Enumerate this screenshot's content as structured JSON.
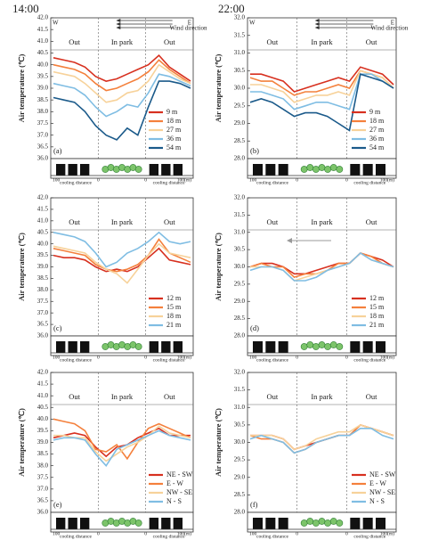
{
  "headers": [
    "14:00",
    "22:00"
  ],
  "chart_data": [
    {
      "type": "line",
      "panel": "(a)",
      "y_label": "Air temperature (℃)",
      "sections": [
        "Out",
        "In park",
        "Out"
      ],
      "west": "W",
      "east": "E",
      "wind_label": "Wind direction",
      "strip_labels": [
        "100",
        "cooling distance",
        "0",
        "0",
        "cooling distance",
        "100(m)"
      ],
      "ylim": [
        36,
        42
      ],
      "yticks": [
        {
          "value": 36,
          "label": "36.0"
        },
        {
          "value": 36.5,
          "label": "36.5"
        },
        {
          "value": 37,
          "label": "37.0"
        },
        {
          "value": 37.5,
          "label": "37.5"
        },
        {
          "value": 38,
          "label": "38.0"
        },
        {
          "value": 38.5,
          "label": "38.5"
        },
        {
          "value": 39,
          "label": "39.0"
        },
        {
          "value": 39.5,
          "label": "39.5"
        },
        {
          "value": 40,
          "label": "40.0"
        },
        {
          "value": 40.5,
          "label": "40.5"
        },
        {
          "value": 41,
          "label": "41.0"
        },
        {
          "value": 41.5,
          "label": "41.5"
        },
        {
          "value": 42,
          "label": "42.0"
        }
      ],
      "series": [
        {
          "name": "9 m",
          "color": "#d7301f",
          "values": [
            40.3,
            40.2,
            40.1,
            39.9,
            39.5,
            39.3,
            39.4,
            39.6,
            39.8,
            40.0,
            40.4,
            39.9,
            39.6,
            39.3
          ]
        },
        {
          "name": "18 m",
          "color": "#f4803c",
          "values": [
            40.0,
            39.9,
            39.8,
            39.6,
            39.2,
            38.9,
            39.0,
            39.2,
            39.4,
            39.7,
            40.2,
            39.8,
            39.5,
            39.2
          ]
        },
        {
          "name": "27 m",
          "color": "#f7d29a",
          "values": [
            39.7,
            39.6,
            39.5,
            39.2,
            38.8,
            38.4,
            38.5,
            38.8,
            38.9,
            39.3,
            40.0,
            39.7,
            39.4,
            39.2
          ]
        },
        {
          "name": "36 m",
          "color": "#7fbde3",
          "values": [
            39.2,
            39.1,
            39.0,
            38.7,
            38.2,
            37.8,
            38.0,
            38.3,
            38.2,
            38.8,
            39.6,
            39.5,
            39.3,
            39.1
          ]
        },
        {
          "name": "54 m",
          "color": "#1b5a8a",
          "values": [
            38.6,
            38.5,
            38.4,
            38.0,
            37.4,
            37.0,
            36.8,
            37.3,
            37.0,
            38.2,
            39.3,
            39.3,
            39.2,
            39.0
          ]
        }
      ]
    },
    {
      "type": "line",
      "panel": "(b)",
      "y_label": "Air temperature (℃)",
      "sections": [
        "Out",
        "In park",
        "Out"
      ],
      "west": "W",
      "east": "E",
      "wind_label": "Wind direction",
      "strip_labels": [
        "100",
        "cooling distance",
        "0",
        "0",
        "cooling distance",
        "100(m)"
      ],
      "ylim": [
        28,
        32
      ],
      "yticks": [
        {
          "value": 28,
          "label": "28.0"
        },
        {
          "value": 28.5,
          "label": "28.5"
        },
        {
          "value": 29,
          "label": "29.0"
        },
        {
          "value": 29.5,
          "label": "29.5"
        },
        {
          "value": 30,
          "label": "30.0"
        },
        {
          "value": 30.5,
          "label": "30.5"
        },
        {
          "value": 31,
          "label": "31.0"
        },
        {
          "value": 31.5,
          "label": "31.5"
        },
        {
          "value": 32,
          "label": "32.0"
        }
      ],
      "series": [
        {
          "name": "9 m",
          "color": "#d7301f",
          "values": [
            30.4,
            30.4,
            30.3,
            30.2,
            29.9,
            30.0,
            30.1,
            30.2,
            30.3,
            30.2,
            30.6,
            30.5,
            30.4,
            30.1
          ]
        },
        {
          "name": "18 m",
          "color": "#f4803c",
          "values": [
            30.3,
            30.2,
            30.2,
            30.0,
            29.8,
            29.9,
            29.9,
            30.0,
            30.1,
            30.0,
            30.5,
            30.4,
            30.3,
            30.0
          ]
        },
        {
          "name": "27 m",
          "color": "#f7d29a",
          "values": [
            30.1,
            30.1,
            30.0,
            29.9,
            29.6,
            29.7,
            29.8,
            29.8,
            29.9,
            29.8,
            30.5,
            30.4,
            30.3,
            30.0
          ]
        },
        {
          "name": "36 m",
          "color": "#7fbde3",
          "values": [
            29.9,
            29.9,
            29.8,
            29.7,
            29.4,
            29.5,
            29.6,
            29.6,
            29.5,
            29.4,
            30.4,
            30.4,
            30.2,
            30.0
          ]
        },
        {
          "name": "54 m",
          "color": "#1b5a8a",
          "values": [
            29.6,
            29.7,
            29.6,
            29.4,
            29.2,
            29.3,
            29.3,
            29.2,
            29.0,
            28.8,
            30.4,
            30.3,
            30.2,
            30.0
          ]
        }
      ]
    },
    {
      "type": "line",
      "panel": "(c)",
      "y_label": "Air temperature (℃)",
      "sections": [
        "Out",
        "In park",
        "Out"
      ],
      "strip_labels": [
        "100",
        "cooling distance",
        "0",
        "0",
        "cooling distance",
        "100(m)"
      ],
      "ylim": [
        36,
        42
      ],
      "yticks": [
        {
          "value": 36,
          "label": "36.0"
        },
        {
          "value": 36.5,
          "label": "36.5"
        },
        {
          "value": 37,
          "label": "37.0"
        },
        {
          "value": 37.5,
          "label": "37.5"
        },
        {
          "value": 38,
          "label": "38.0"
        },
        {
          "value": 38.5,
          "label": "38.5"
        },
        {
          "value": 39,
          "label": "39.0"
        },
        {
          "value": 39.5,
          "label": "39.5"
        },
        {
          "value": 40,
          "label": "40.0"
        },
        {
          "value": 40.5,
          "label": "40.5"
        },
        {
          "value": 41,
          "label": "41.0"
        },
        {
          "value": 41.5,
          "label": "41.5"
        },
        {
          "value": 42,
          "label": "42.0"
        }
      ],
      "series": [
        {
          "name": "12 m",
          "color": "#d7301f",
          "values": [
            39.5,
            39.4,
            39.4,
            39.3,
            39.0,
            38.8,
            38.9,
            38.8,
            39.0,
            39.4,
            39.8,
            39.3,
            39.2,
            39.1
          ]
        },
        {
          "name": "15 m",
          "color": "#f4803c",
          "values": [
            39.8,
            39.7,
            39.6,
            39.5,
            39.1,
            38.9,
            38.8,
            38.9,
            39.1,
            39.5,
            40.2,
            39.6,
            39.4,
            39.2
          ]
        },
        {
          "name": "18 m",
          "color": "#f7d29a",
          "values": [
            39.9,
            39.8,
            39.7,
            39.6,
            39.2,
            38.9,
            38.7,
            38.3,
            38.9,
            39.5,
            40.0,
            39.6,
            39.5,
            39.4
          ]
        },
        {
          "name": "21 m",
          "color": "#7fbde3",
          "values": [
            40.5,
            40.4,
            40.3,
            40.1,
            39.6,
            39.0,
            39.2,
            39.6,
            39.8,
            40.1,
            40.5,
            40.1,
            40.0,
            40.1
          ]
        }
      ]
    },
    {
      "type": "line",
      "panel": "(d)",
      "y_label": "Air temperature (℃)",
      "sections": [
        "Out",
        "In park",
        "Out"
      ],
      "strip_labels": [
        "100",
        "cooling distance",
        "0",
        "0",
        "cooling distance",
        "100(m)"
      ],
      "ylim": [
        28,
        32
      ],
      "yticks": [
        {
          "value": 28,
          "label": "28.0"
        },
        {
          "value": 28.5,
          "label": "28.5"
        },
        {
          "value": 29,
          "label": "29.0"
        },
        {
          "value": 29.5,
          "label": "29.5"
        },
        {
          "value": 30,
          "label": "30.0"
        },
        {
          "value": 30.5,
          "label": "30.5"
        },
        {
          "value": 31,
          "label": "31.0"
        },
        {
          "value": 31.5,
          "label": "31.5"
        },
        {
          "value": 32,
          "label": "32.0"
        }
      ],
      "series": [
        {
          "name": "12 m",
          "color": "#d7301f",
          "values": [
            30.0,
            30.1,
            30.1,
            30.0,
            29.8,
            29.8,
            29.9,
            30.0,
            30.1,
            30.1,
            30.4,
            30.3,
            30.2,
            30.0
          ]
        },
        {
          "name": "15 m",
          "color": "#f4803c",
          "values": [
            30.0,
            30.1,
            30.0,
            30.0,
            29.7,
            29.8,
            29.8,
            29.9,
            30.1,
            30.1,
            30.4,
            30.3,
            30.1,
            30.0
          ]
        },
        {
          "name": "18 m",
          "color": "#f7d29a",
          "values": [
            30.0,
            30.0,
            30.0,
            29.9,
            29.6,
            29.7,
            29.8,
            29.9,
            30.0,
            30.1,
            30.4,
            30.2,
            30.1,
            30.0
          ]
        },
        {
          "name": "21 m",
          "color": "#7fbde3",
          "values": [
            29.9,
            30.0,
            30.0,
            29.9,
            29.6,
            29.6,
            29.7,
            29.9,
            30.0,
            30.1,
            30.4,
            30.2,
            30.1,
            30.0
          ]
        }
      ]
    },
    {
      "type": "line",
      "panel": "(e)",
      "y_label": "Air temperature (℃)",
      "sections": [
        "Out",
        "In park",
        "Out"
      ],
      "strip_labels": [
        "100",
        "cooling distance",
        "0",
        "0",
        "cooling distance",
        "100(m)"
      ],
      "ylim": [
        36,
        42
      ],
      "yticks": [
        {
          "value": 36,
          "label": "36.0"
        },
        {
          "value": 36.5,
          "label": "36.5"
        },
        {
          "value": 37,
          "label": "37.0"
        },
        {
          "value": 37.5,
          "label": "37.5"
        },
        {
          "value": 38,
          "label": "38.0"
        },
        {
          "value": 38.5,
          "label": "38.5"
        },
        {
          "value": 39,
          "label": "39.0"
        },
        {
          "value": 39.5,
          "label": "39.5"
        },
        {
          "value": 40,
          "label": "40.0"
        },
        {
          "value": 40.5,
          "label": "40.5"
        },
        {
          "value": 41,
          "label": "41.0"
        },
        {
          "value": 41.5,
          "label": "41.5"
        },
        {
          "value": 42,
          "label": "42.0"
        }
      ],
      "series": [
        {
          "name": "NE - SW",
          "color": "#d7301f",
          "values": [
            39.2,
            39.3,
            39.4,
            39.3,
            38.8,
            38.4,
            38.8,
            38.9,
            39.2,
            39.4,
            39.6,
            39.3,
            39.3,
            39.3
          ]
        },
        {
          "name": "E - W",
          "color": "#f4803c",
          "values": [
            40.0,
            39.9,
            39.8,
            39.5,
            38.7,
            38.6,
            38.9,
            38.3,
            39.0,
            39.6,
            39.8,
            39.6,
            39.4,
            39.2
          ]
        },
        {
          "name": "NW - SE",
          "color": "#f7d29a",
          "values": [
            39.3,
            39.3,
            39.2,
            39.2,
            38.6,
            38.2,
            38.5,
            38.8,
            39.0,
            39.3,
            39.7,
            39.4,
            39.3,
            39.2
          ]
        },
        {
          "name": "N - S",
          "color": "#7fbde3",
          "values": [
            39.1,
            39.2,
            39.2,
            39.1,
            38.5,
            38.0,
            38.7,
            38.9,
            39.1,
            39.3,
            39.5,
            39.3,
            39.2,
            39.1
          ]
        }
      ]
    },
    {
      "type": "line",
      "panel": "(f)",
      "y_label": "Air temperature (℃)",
      "sections": [
        "Out",
        "In park",
        "Out"
      ],
      "strip_labels": [
        "100",
        "cooling distance",
        "0",
        "0",
        "cooling distance",
        "100(m)"
      ],
      "ylim": [
        28,
        32
      ],
      "yticks": [
        {
          "value": 28,
          "label": "28.0"
        },
        {
          "value": 28.5,
          "label": "28.5"
        },
        {
          "value": 29,
          "label": "29.0"
        },
        {
          "value": 29.5,
          "label": "29.5"
        },
        {
          "value": 30,
          "label": "30.0"
        },
        {
          "value": 30.5,
          "label": "30.5"
        },
        {
          "value": 31,
          "label": "31.0"
        },
        {
          "value": 31.5,
          "label": "31.5"
        },
        {
          "value": 32,
          "label": "32.0"
        }
      ],
      "series": [
        {
          "name": "NE - SW",
          "color": "#d7301f",
          "values": [
            30.2,
            30.2,
            30.2,
            30.1,
            29.8,
            29.9,
            30.0,
            30.1,
            30.2,
            30.2,
            30.5,
            30.4,
            30.3,
            30.2
          ]
        },
        {
          "name": "E - W",
          "color": "#f4803c",
          "values": [
            30.2,
            30.1,
            30.1,
            30.0,
            29.7,
            29.8,
            30.0,
            30.1,
            30.2,
            30.2,
            30.5,
            30.4,
            30.3,
            30.2
          ]
        },
        {
          "name": "NW - SE",
          "color": "#f7d29a",
          "values": [
            30.2,
            30.2,
            30.2,
            30.1,
            29.8,
            29.9,
            30.1,
            30.2,
            30.3,
            30.3,
            30.5,
            30.4,
            30.3,
            30.2
          ]
        },
        {
          "name": "N - S",
          "color": "#7fbde3",
          "values": [
            30.1,
            30.2,
            30.1,
            30.0,
            29.7,
            29.8,
            30.0,
            30.1,
            30.2,
            30.2,
            30.4,
            30.4,
            30.2,
            30.1
          ]
        }
      ]
    }
  ]
}
